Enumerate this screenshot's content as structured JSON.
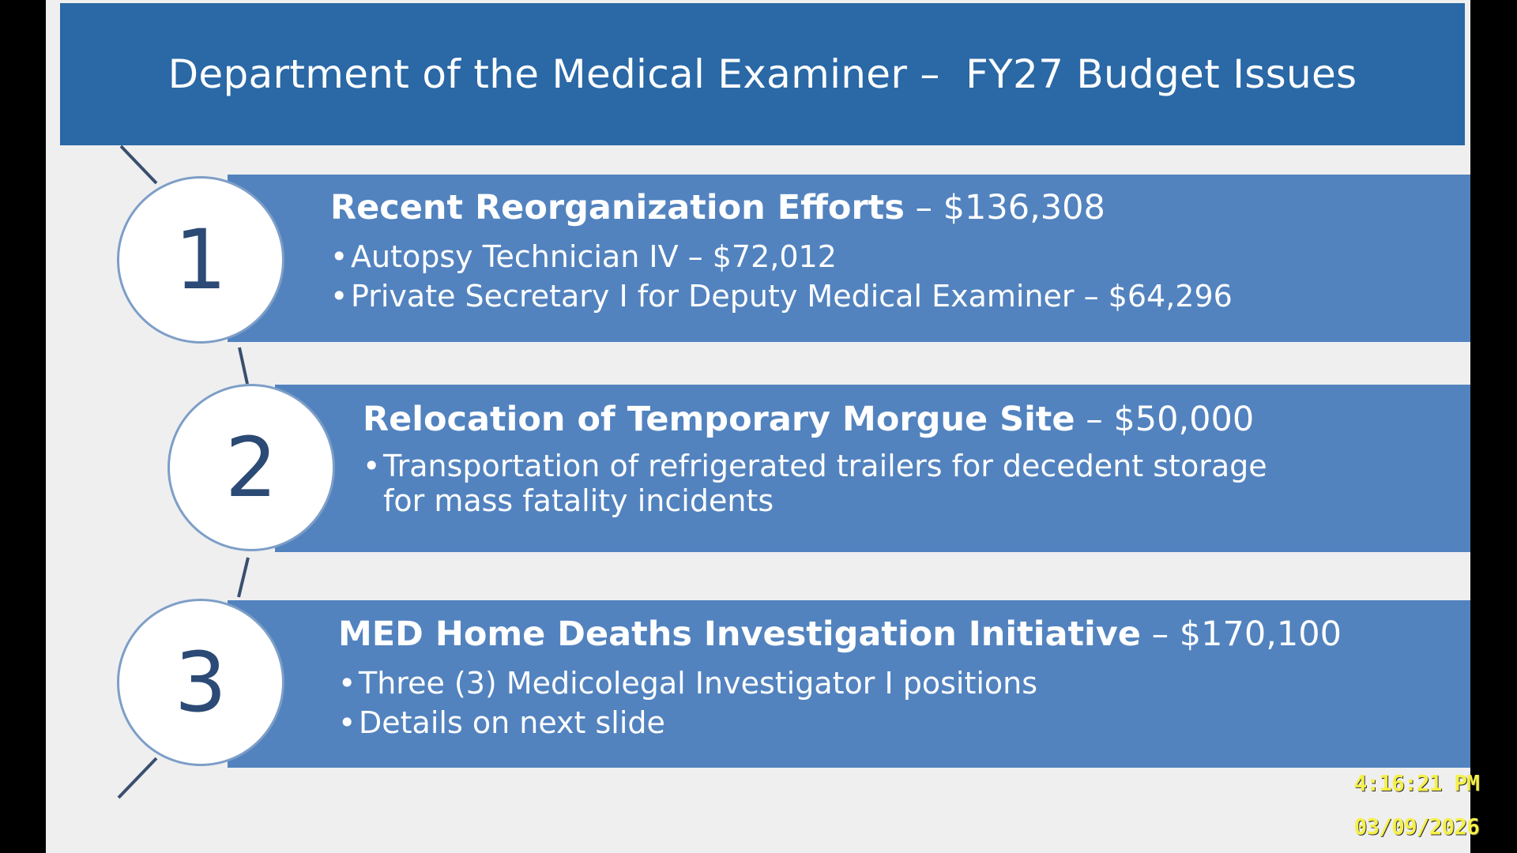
{
  "header": {
    "title": "Department of the Medical Examiner –  FY27 Budget Issues"
  },
  "items": [
    {
      "number": "1",
      "title": "Recent Reorganization Efforts",
      "amount": " – $136,308",
      "bullets": [
        "Autopsy Technician IV – $72,012",
        "Private Secretary I for Deputy Medical Examiner  – $64,296"
      ]
    },
    {
      "number": "2",
      "title": "Relocation of Temporary Morgue Site",
      "amount": " – $50,000",
      "bullets": [
        "Transportation of refrigerated trailers for decedent storage for mass fatality incidents"
      ]
    },
    {
      "number": "3",
      "title": "MED Home Deaths Investigation Initiative",
      "amount": " – $170,100",
      "bullets": [
        "Three (3) Medicolegal Investigator I positions",
        "Details on next slide"
      ]
    }
  ],
  "overlay": {
    "time": "4:16:21 PM",
    "date": "03/09/2026"
  },
  "colors": {
    "header_bg": "#2a68a6",
    "band_bg": "#5283bf",
    "slide_bg": "#efeff0",
    "number_color": "#2b4a75",
    "clock_color": "#f5f04a"
  }
}
